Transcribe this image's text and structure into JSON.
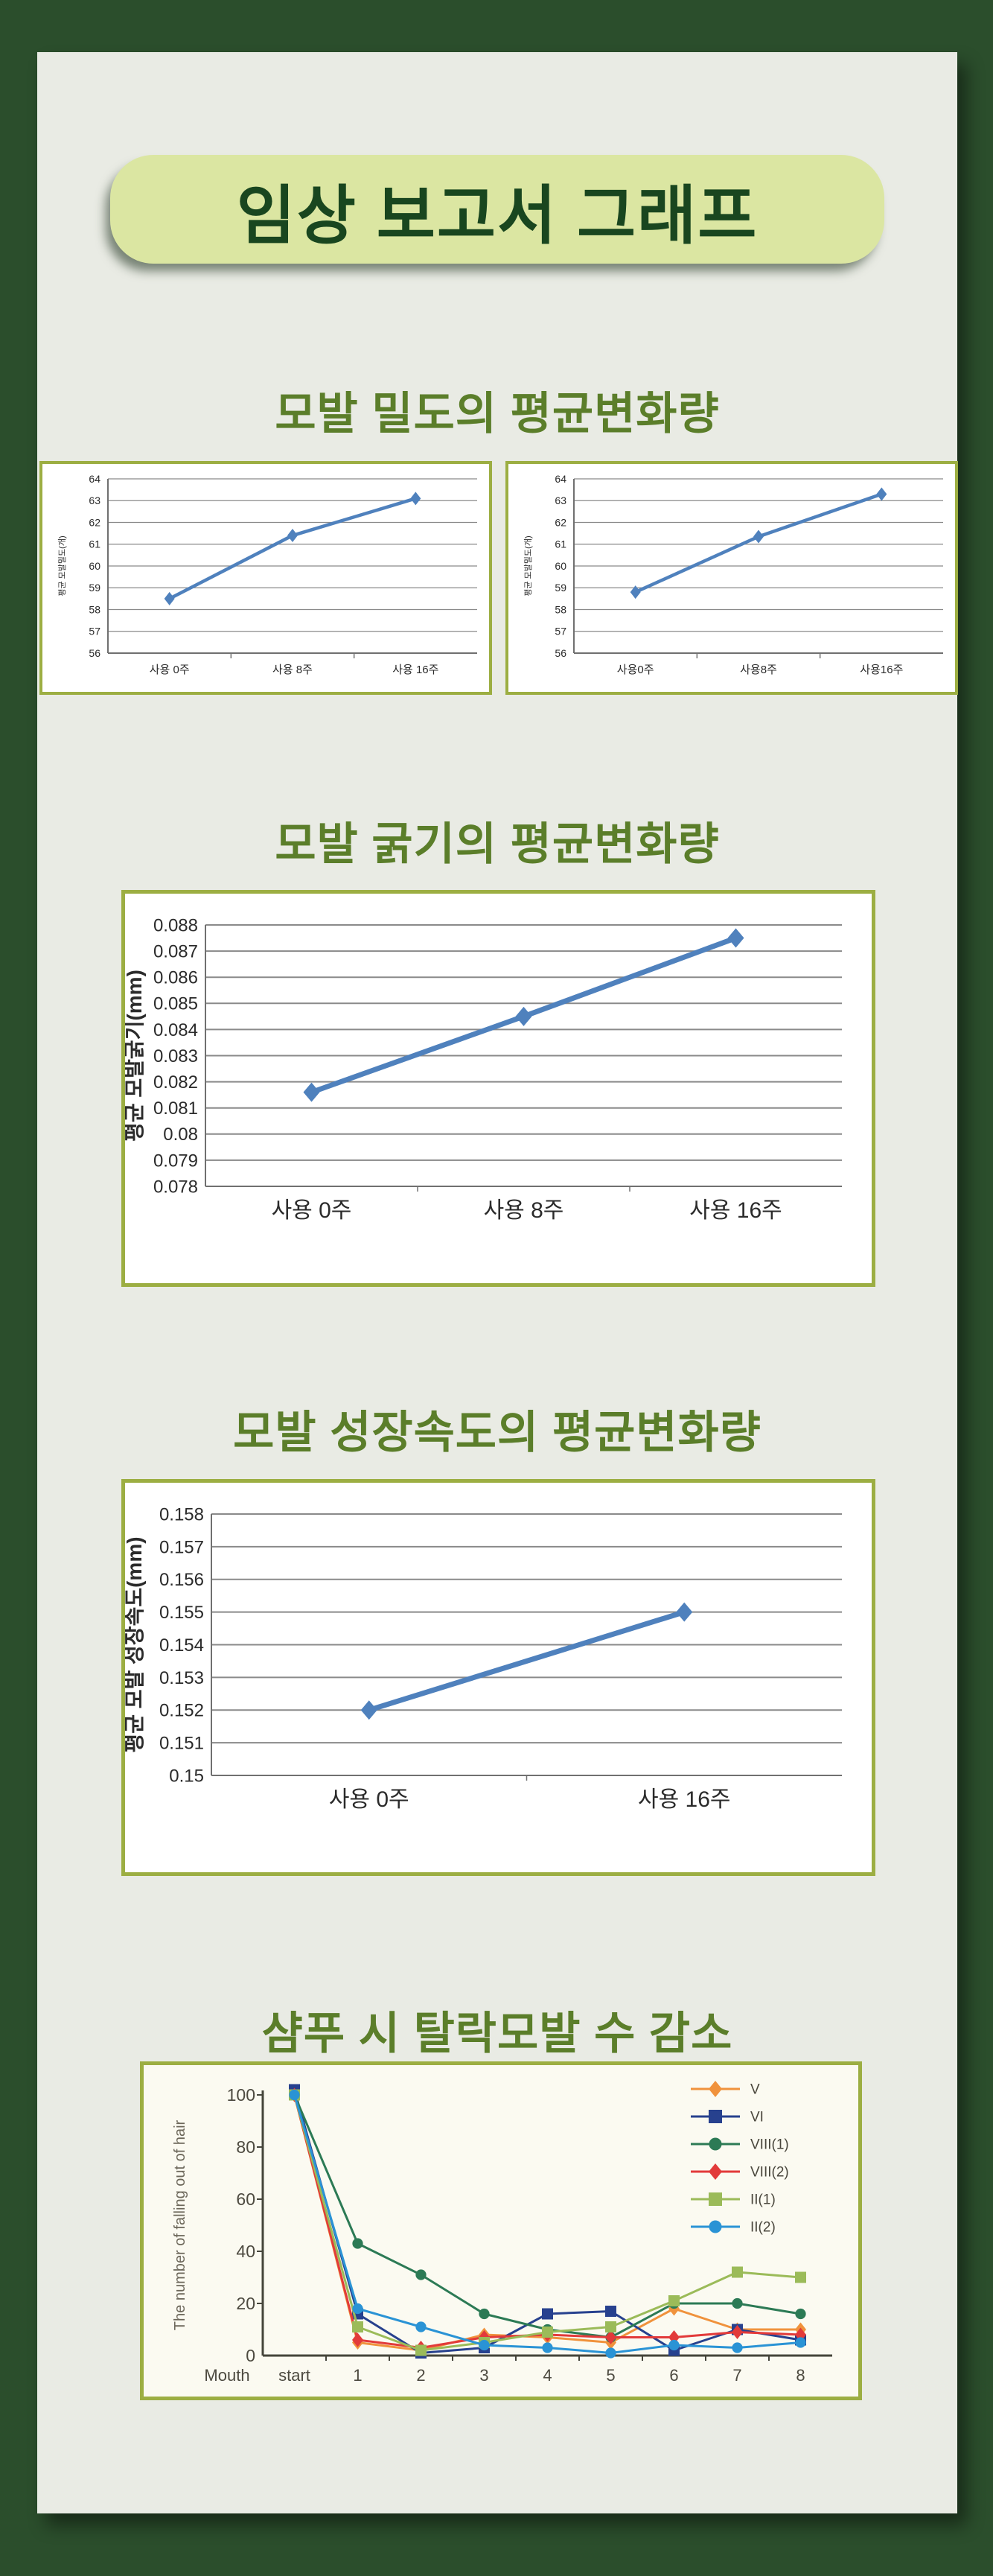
{
  "page": {
    "title": "임상 보고서 그래프",
    "colors": {
      "page_bg": "#2b4e2c",
      "panel_bg": "#e9ebe4",
      "banner_bg": "#dbe6a2",
      "banner_text": "#19461f",
      "heading": "#5b7e2a",
      "chart_border": "#9cae42",
      "line_blue": "#4f81bd"
    }
  },
  "chart_data": [
    {
      "id": "hair-density-left",
      "type": "line",
      "section_title": "모발 밀도의 평균변화량",
      "categories": [
        "사용 0주",
        "사용 8주",
        "사용 16주"
      ],
      "values": [
        58.5,
        61.4,
        63.1
      ],
      "ylabel": "평균 모발밀도(개)",
      "ylim": [
        56,
        64
      ],
      "ystep": 1,
      "line_color": "#4f81bd",
      "marker": "diamond",
      "grid": true,
      "legend_position": "none"
    },
    {
      "id": "hair-density-right",
      "type": "line",
      "section_title": "모발 밀도의 평균변화량",
      "categories": [
        "사용0주",
        "사용8주",
        "사용16주"
      ],
      "values": [
        58.8,
        61.35,
        63.3
      ],
      "ylabel": "평균 모발밀도(개)",
      "ylim": [
        56,
        64
      ],
      "ystep": 1,
      "line_color": "#4f81bd",
      "marker": "diamond",
      "grid": true,
      "legend_position": "none"
    },
    {
      "id": "hair-thickness",
      "type": "line",
      "section_title": "모발 굵기의 평균변화량",
      "categories": [
        "사용 0주",
        "사용 8주",
        "사용 16주"
      ],
      "values": [
        0.0816,
        0.0845,
        0.0875
      ],
      "ylabel": "평균 모발굵기(mm)",
      "ylim": [
        0.078,
        0.088
      ],
      "ystep": 0.001,
      "line_color": "#4f81bd",
      "marker": "diamond",
      "grid": true,
      "legend_position": "none"
    },
    {
      "id": "hair-growth-speed",
      "type": "line",
      "section_title": "모발 성장속도의 평균변화량",
      "categories": [
        "사용 0주",
        "사용 16주"
      ],
      "values": [
        0.152,
        0.155
      ],
      "ylabel": "평균 모발 성장속도(mm)",
      "ylim": [
        0.15,
        0.158
      ],
      "ystep": 0.001,
      "line_color": "#4f81bd",
      "marker": "diamond",
      "grid": true,
      "legend_position": "none"
    },
    {
      "id": "falling-hair-count",
      "type": "line",
      "section_title": "샴푸 시 탈락모발 수 감소",
      "categories": [
        "start",
        "1",
        "2",
        "3",
        "4",
        "5",
        "6",
        "7",
        "8"
      ],
      "xlabel": "Mouth",
      "ylabel": "The number of falling out of hair",
      "ylim": [
        0,
        100
      ],
      "ystep": 20,
      "grid": false,
      "legend_position": "top-right",
      "series": [
        {
          "name": "V",
          "color": "#f0923c",
          "marker": "diamond",
          "values": [
            100,
            5,
            2,
            8,
            7,
            5,
            18,
            10,
            10
          ]
        },
        {
          "name": "VI",
          "color": "#27418e",
          "marker": "square",
          "values": [
            102,
            16,
            1,
            3,
            16,
            17,
            2,
            10,
            6
          ]
        },
        {
          "name": "VIII(1)",
          "color": "#2c7a55",
          "marker": "circle",
          "values": [
            100,
            43,
            31,
            16,
            10,
            7,
            20,
            20,
            16
          ]
        },
        {
          "name": "VIII(2)",
          "color": "#e23a3a",
          "marker": "diamond",
          "values": [
            100,
            6,
            3,
            7,
            8,
            7,
            7,
            9,
            8
          ]
        },
        {
          "name": "II(1)",
          "color": "#9bbb59",
          "marker": "square",
          "values": [
            100,
            11,
            2,
            5,
            9,
            11,
            21,
            32,
            30
          ]
        },
        {
          "name": "II(2)",
          "color": "#2a93d5",
          "marker": "circle",
          "values": [
            100,
            18,
            11,
            4,
            3,
            1,
            4,
            3,
            5
          ]
        }
      ]
    }
  ]
}
